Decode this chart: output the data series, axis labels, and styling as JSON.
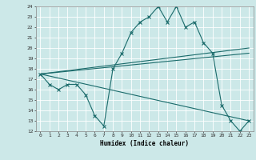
{
  "title": "",
  "xlabel": "Humidex (Indice chaleur)",
  "ylabel": "",
  "bg_color": "#cce8e8",
  "grid_color": "#ffffff",
  "line_color": "#1a6b6b",
  "x_data": [
    0,
    1,
    2,
    3,
    4,
    5,
    6,
    7,
    8,
    9,
    10,
    11,
    12,
    13,
    14,
    15,
    16,
    17,
    18,
    19,
    20,
    21,
    22,
    23
  ],
  "series1": [
    17.5,
    16.5,
    16.0,
    16.5,
    16.5,
    15.5,
    13.5,
    12.5,
    18.0,
    19.5,
    21.5,
    22.5,
    23.0,
    24.0,
    22.5,
    24.0,
    22.0,
    22.5,
    20.5,
    19.5,
    14.5,
    13.0,
    12.0,
    13.0
  ],
  "series2_x": [
    0,
    23
  ],
  "series2_y": [
    17.5,
    20.0
  ],
  "series3_x": [
    0,
    23
  ],
  "series3_y": [
    17.5,
    19.5
  ],
  "series4_x": [
    0,
    23
  ],
  "series4_y": [
    17.5,
    13.0
  ],
  "ylim": [
    12,
    24
  ],
  "xlim": [
    -0.5,
    23.5
  ],
  "yticks": [
    12,
    13,
    14,
    15,
    16,
    17,
    18,
    19,
    20,
    21,
    22,
    23,
    24
  ],
  "xticks": [
    0,
    1,
    2,
    3,
    4,
    5,
    6,
    7,
    8,
    9,
    10,
    11,
    12,
    13,
    14,
    15,
    16,
    17,
    18,
    19,
    20,
    21,
    22,
    23
  ]
}
